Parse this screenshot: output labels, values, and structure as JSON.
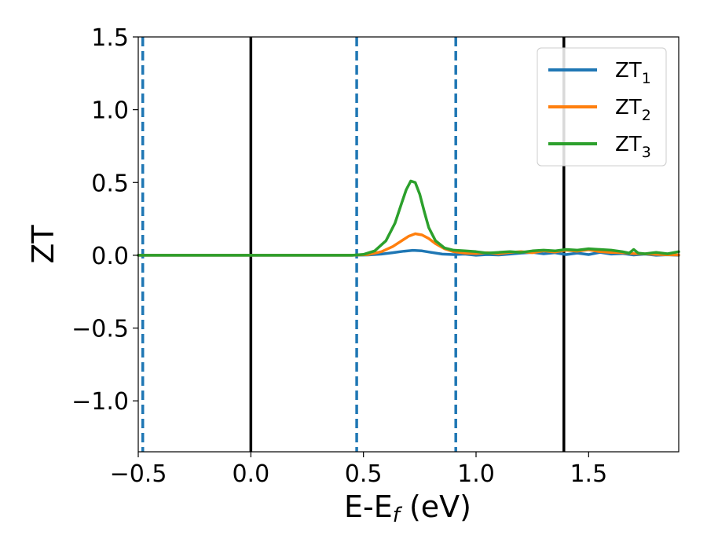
{
  "chart_data": {
    "type": "line",
    "xlabel": {
      "base": "E-E",
      "sub": "f",
      "suffix": " (eV)"
    },
    "ylabel": "ZT",
    "xlim": [
      -0.5,
      1.9
    ],
    "ylim": [
      -1.35,
      1.5
    ],
    "xticks": [
      {
        "value": -0.5,
        "label": "−0.5"
      },
      {
        "value": 0.0,
        "label": "0.0"
      },
      {
        "value": 0.5,
        "label": "0.5"
      },
      {
        "value": 1.0,
        "label": "1.0"
      },
      {
        "value": 1.5,
        "label": "1.5"
      }
    ],
    "yticks": [
      {
        "value": -1.0,
        "label": "−1.0"
      },
      {
        "value": -0.5,
        "label": "−0.5"
      },
      {
        "value": 0.0,
        "label": "0.0"
      },
      {
        "value": 0.5,
        "label": "0.5"
      },
      {
        "value": 1.0,
        "label": "1.0"
      },
      {
        "value": 1.5,
        "label": "1.5"
      }
    ],
    "legend": {
      "placement": "top-right"
    },
    "vlines": [
      {
        "x": -0.48,
        "style": "dashed",
        "color": "#1f77b4"
      },
      {
        "x": 0.0,
        "style": "solid",
        "color": "#000000"
      },
      {
        "x": 0.47,
        "style": "dashed",
        "color": "#1f77b4"
      },
      {
        "x": 0.91,
        "style": "dashed",
        "color": "#1f77b4"
      },
      {
        "x": 1.39,
        "style": "solid",
        "color": "#000000"
      }
    ],
    "series": [
      {
        "name": "ZT",
        "sub": "1",
        "color": "#1f77b4",
        "x": [
          -0.5,
          0.0,
          0.45,
          0.52,
          0.58,
          0.63,
          0.68,
          0.72,
          0.76,
          0.8,
          0.85,
          0.9,
          0.95,
          1.0,
          1.05,
          1.1,
          1.15,
          1.2,
          1.25,
          1.3,
          1.35,
          1.4,
          1.45,
          1.5,
          1.55,
          1.6,
          1.65,
          1.7,
          1.75,
          1.8,
          1.85,
          1.9
        ],
        "y": [
          0.0,
          0.0,
          0.0,
          0.002,
          0.008,
          0.018,
          0.028,
          0.034,
          0.03,
          0.02,
          0.008,
          0.005,
          0.008,
          0.0,
          0.005,
          0.002,
          0.008,
          0.015,
          0.02,
          0.01,
          0.018,
          0.005,
          0.015,
          0.005,
          0.02,
          0.008,
          0.012,
          0.002,
          0.008,
          0.0,
          0.004,
          0.0
        ]
      },
      {
        "name": "ZT",
        "sub": "2",
        "color": "#ff7f0e",
        "x": [
          -0.5,
          0.0,
          0.45,
          0.52,
          0.58,
          0.63,
          0.67,
          0.7,
          0.73,
          0.76,
          0.79,
          0.82,
          0.86,
          0.9,
          0.95,
          1.0,
          1.05,
          1.1,
          1.15,
          1.2,
          1.25,
          1.3,
          1.35,
          1.4,
          1.45,
          1.5,
          1.55,
          1.6,
          1.65,
          1.7,
          1.75,
          1.8,
          1.85,
          1.9
        ],
        "y": [
          0.0,
          0.0,
          0.0,
          0.005,
          0.025,
          0.06,
          0.1,
          0.13,
          0.148,
          0.14,
          0.115,
          0.08,
          0.045,
          0.025,
          0.015,
          0.012,
          0.018,
          0.01,
          0.02,
          0.025,
          0.018,
          0.03,
          0.022,
          0.035,
          0.028,
          0.038,
          0.025,
          0.02,
          0.018,
          0.012,
          0.01,
          0.006,
          0.004,
          0.002
        ]
      },
      {
        "name": "ZT",
        "sub": "3",
        "color": "#2ca02c",
        "x": [
          -0.5,
          0.0,
          0.45,
          0.5,
          0.55,
          0.6,
          0.64,
          0.67,
          0.69,
          0.71,
          0.73,
          0.75,
          0.77,
          0.79,
          0.82,
          0.86,
          0.9,
          0.95,
          1.0,
          1.05,
          1.1,
          1.15,
          1.2,
          1.25,
          1.3,
          1.35,
          1.4,
          1.45,
          1.5,
          1.55,
          1.6,
          1.65,
          1.68,
          1.7,
          1.72,
          1.75,
          1.8,
          1.85,
          1.9
        ],
        "y": [
          0.0,
          0.0,
          0.0,
          0.006,
          0.03,
          0.1,
          0.22,
          0.36,
          0.45,
          0.51,
          0.5,
          0.42,
          0.3,
          0.19,
          0.1,
          0.05,
          0.035,
          0.03,
          0.025,
          0.015,
          0.02,
          0.025,
          0.02,
          0.03,
          0.035,
          0.03,
          0.04,
          0.035,
          0.045,
          0.04,
          0.035,
          0.025,
          0.015,
          0.04,
          0.015,
          0.01,
          0.02,
          0.01,
          0.025
        ]
      }
    ]
  }
}
